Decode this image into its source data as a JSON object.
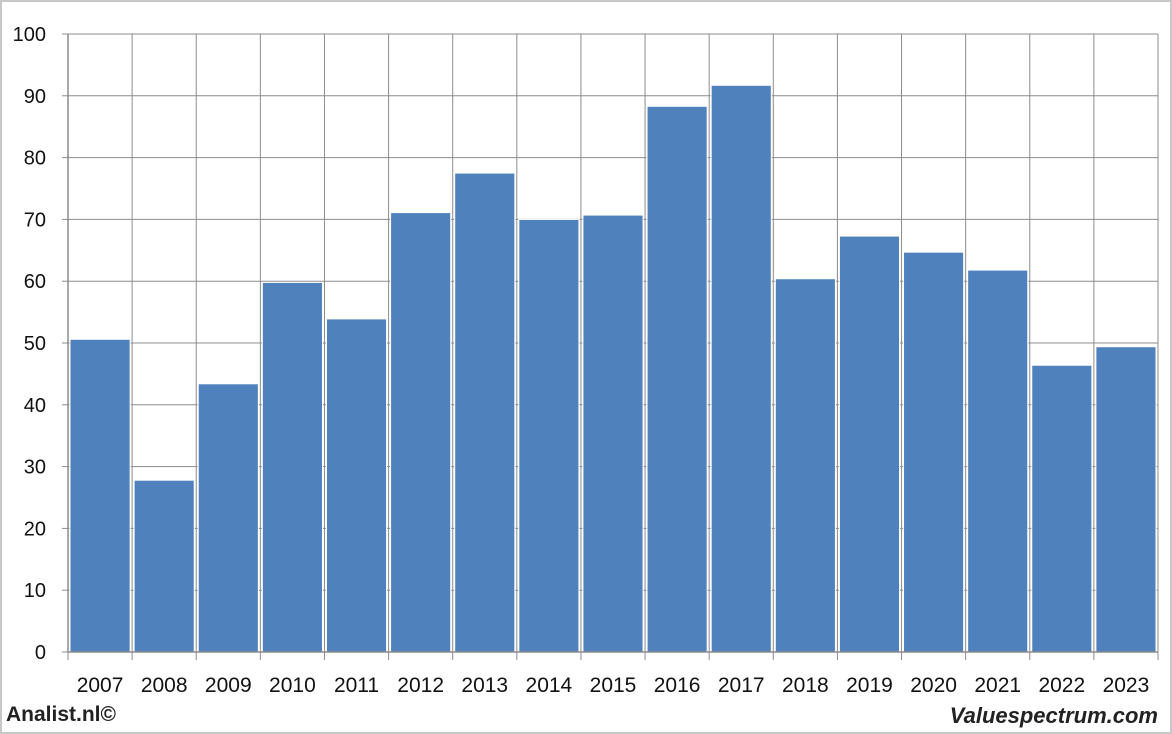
{
  "chart_data": {
    "type": "bar",
    "categories": [
      "2007",
      "2008",
      "2009",
      "2010",
      "2011",
      "2012",
      "2013",
      "2014",
      "2015",
      "2016",
      "2017",
      "2018",
      "2019",
      "2020",
      "2021",
      "2022",
      "2023"
    ],
    "values": [
      50.6,
      27.8,
      43.4,
      59.8,
      53.9,
      71.1,
      77.5,
      70.0,
      70.7,
      88.3,
      91.7,
      60.4,
      67.3,
      64.7,
      61.8,
      46.4,
      49.4
    ],
    "ylim": [
      0,
      100
    ],
    "yticks": [
      0,
      10,
      20,
      30,
      40,
      50,
      60,
      70,
      80,
      90,
      100
    ],
    "grid": true,
    "bar_color": "#4F81BD"
  },
  "footer": {
    "left": "Analist.nl©",
    "right": "Valuespectrum.com"
  }
}
